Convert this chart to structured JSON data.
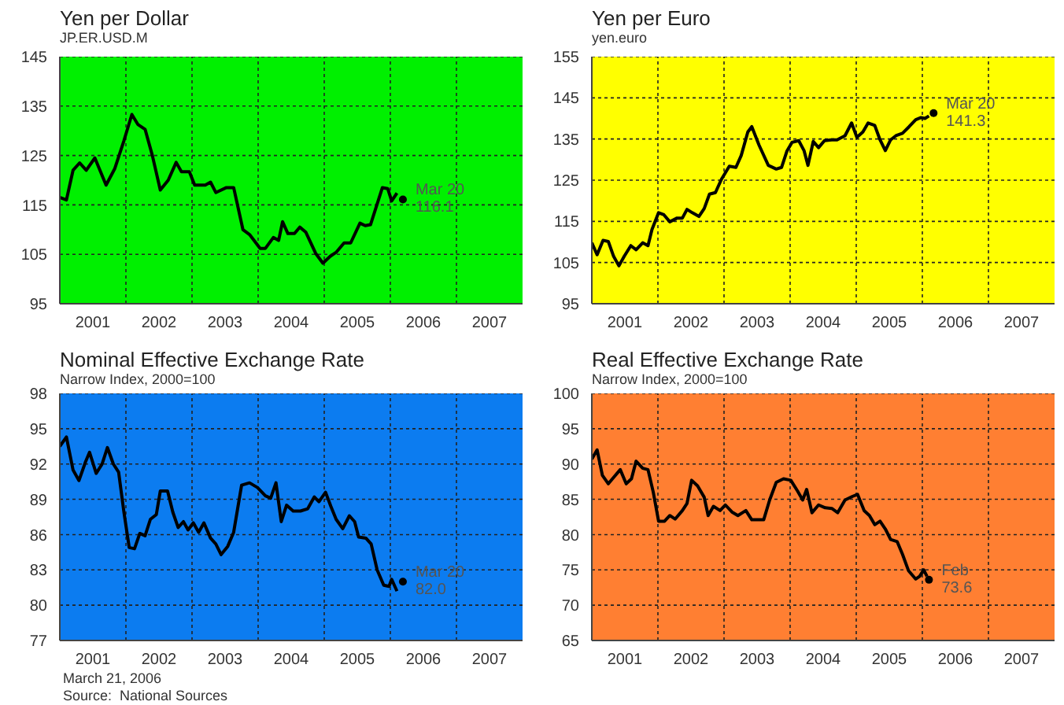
{
  "chart_data": [
    {
      "type": "line",
      "title": "Yen per Dollar",
      "subtitle": "JP.ER.USD.M",
      "xlim": [
        2001,
        2008
      ],
      "xticks": [
        {
          "value": 2001.5,
          "label": "2001"
        },
        {
          "value": 2002,
          "label": null
        },
        {
          "value": 2002.5,
          "label": "2002"
        },
        {
          "value": 2003,
          "label": null
        },
        {
          "value": 2003.5,
          "label": "2003"
        },
        {
          "value": 2004,
          "label": null
        },
        {
          "value": 2004.5,
          "label": "2004"
        },
        {
          "value": 2005,
          "label": null
        },
        {
          "value": 2005.5,
          "label": "2005"
        },
        {
          "value": 2006,
          "label": null
        },
        {
          "value": 2006.5,
          "label": "2006"
        },
        {
          "value": 2007,
          "label": null
        },
        {
          "value": 2007.5,
          "label": "2007"
        }
      ],
      "ylim": [
        95,
        145
      ],
      "yticks": [
        95,
        105,
        115,
        125,
        135,
        145
      ],
      "grid": true,
      "legend": false,
      "marker": "none",
      "line_style": "solid",
      "series": [
        {
          "type": "line",
          "color": "#000000",
          "x": [
            2001.0,
            2001.1,
            2001.2,
            2001.3,
            2001.4,
            2001.53,
            2001.7,
            2001.83,
            2001.97,
            2002.09,
            2002.18,
            2002.29,
            2002.4,
            2002.52,
            2002.64,
            2002.76,
            2002.84,
            2002.96,
            2003.04,
            2003.2,
            2003.28,
            2003.36,
            2003.52,
            2003.63,
            2003.77,
            2003.87,
            2004.03,
            2004.11,
            2004.23,
            2004.31,
            2004.37,
            2004.45,
            2004.55,
            2004.63,
            2004.72,
            2004.87,
            2004.98,
            2005.09,
            2005.18,
            2005.3,
            2005.4,
            2005.54,
            2005.62,
            2005.7,
            2005.88,
            2005.96,
            2006.02,
            2006.1
          ],
          "values": [
            116.5,
            116,
            122,
            123.5,
            122,
            124.5,
            119,
            122.3,
            128,
            133.3,
            131.3,
            130.3,
            125,
            118,
            120,
            123.6,
            121.7,
            121.7,
            119,
            119,
            119.6,
            117.5,
            118.5,
            118.5,
            110,
            109,
            106.2,
            106.2,
            108.4,
            107.8,
            111.6,
            109.2,
            109.2,
            110.5,
            109.5,
            105.2,
            103.2,
            104.6,
            105.4,
            107.3,
            107.3,
            111.3,
            110.8,
            111,
            118.5,
            118.3,
            115.8,
            117.4
          ]
        },
        {
          "type": "scatter",
          "marker": "circle",
          "color": "#000000",
          "x": [
            2006.19
          ],
          "values": [
            116.1
          ]
        }
      ],
      "annotations": [
        {
          "text": "Mar 20\n116.1",
          "x": 2006.19,
          "y": 116.1
        }
      ]
    },
    {
      "type": "line",
      "title": "Yen per Euro",
      "subtitle": "yen.euro",
      "xlim": [
        2001,
        2008
      ],
      "xticks": [
        {
          "value": 2001.5,
          "label": "2001"
        },
        {
          "value": 2002,
          "label": null
        },
        {
          "value": 2002.5,
          "label": "2002"
        },
        {
          "value": 2003,
          "label": null
        },
        {
          "value": 2003.5,
          "label": "2003"
        },
        {
          "value": 2004,
          "label": null
        },
        {
          "value": 2004.5,
          "label": "2004"
        },
        {
          "value": 2005,
          "label": null
        },
        {
          "value": 2005.5,
          "label": "2005"
        },
        {
          "value": 2006,
          "label": null
        },
        {
          "value": 2006.5,
          "label": "2006"
        },
        {
          "value": 2007,
          "label": null
        },
        {
          "value": 2007.5,
          "label": "2007"
        }
      ],
      "ylim": [
        95,
        155
      ],
      "yticks": [
        95,
        105,
        115,
        125,
        135,
        145,
        155
      ],
      "grid": true,
      "legend": false,
      "marker": "none",
      "line_style": "solid",
      "series": [
        {
          "type": "line",
          "color": "#000000",
          "x": [
            2001.0,
            2001.08,
            2001.17,
            2001.25,
            2001.33,
            2001.41,
            2001.49,
            2001.59,
            2001.67,
            2001.77,
            2001.85,
            2001.91,
            2002.01,
            2002.09,
            2002.18,
            2002.29,
            2002.37,
            2002.44,
            2002.52,
            2002.62,
            2002.7,
            2002.78,
            2002.87,
            2002.96,
            2003.08,
            2003.18,
            2003.26,
            2003.36,
            2003.42,
            2003.53,
            2003.67,
            2003.79,
            2003.87,
            2003.95,
            2004.03,
            2004.13,
            2004.21,
            2004.27,
            2004.35,
            2004.43,
            2004.52,
            2004.63,
            2004.71,
            2004.83,
            2004.93,
            2005.01,
            2005.1,
            2005.18,
            2005.28,
            2005.36,
            2005.44,
            2005.52,
            2005.6,
            2005.7,
            2005.8,
            2005.9,
            2005.98,
            2006.04,
            2006.1
          ],
          "values": [
            109.8,
            106.9,
            110.4,
            110.1,
            106.5,
            104.2,
            106.5,
            109.1,
            108.1,
            109.8,
            109.1,
            113,
            117.1,
            116.6,
            114.9,
            115.8,
            115.8,
            117.9,
            117.1,
            116.2,
            118.1,
            121.6,
            122,
            125.2,
            128.4,
            128.1,
            131,
            136.7,
            138,
            133.5,
            128.6,
            127.7,
            128.1,
            132,
            134.2,
            134.6,
            132.2,
            128.6,
            134.4,
            132.9,
            134.6,
            134.8,
            134.8,
            135.8,
            138.9,
            135.4,
            136.7,
            138.9,
            138.3,
            134.8,
            132.2,
            134.8,
            135.8,
            136.4,
            138,
            139.7,
            140.2,
            140,
            140.6
          ]
        },
        {
          "type": "scatter",
          "marker": "circle",
          "color": "#000000",
          "x": [
            2006.17
          ],
          "values": [
            141.3
          ]
        }
      ],
      "annotations": [
        {
          "text": "Mar 20\n141.3",
          "x": 2006.17,
          "y": 141.3
        }
      ]
    },
    {
      "type": "line",
      "title": "Nominal Effective Exchange Rate",
      "subtitle": "Narrow Index, 2000=100",
      "xlim": [
        2001,
        2008
      ],
      "xticks": [
        {
          "value": 2001.5,
          "label": "2001"
        },
        {
          "value": 2002,
          "label": null
        },
        {
          "value": 2002.5,
          "label": "2002"
        },
        {
          "value": 2003,
          "label": null
        },
        {
          "value": 2003.5,
          "label": "2003"
        },
        {
          "value": 2004,
          "label": null
        },
        {
          "value": 2004.5,
          "label": "2004"
        },
        {
          "value": 2005,
          "label": null
        },
        {
          "value": 2005.5,
          "label": "2005"
        },
        {
          "value": 2006,
          "label": null
        },
        {
          "value": 2006.5,
          "label": "2006"
        },
        {
          "value": 2007,
          "label": null
        },
        {
          "value": 2007.5,
          "label": "2007"
        }
      ],
      "ylim": [
        77,
        98
      ],
      "yticks": [
        77,
        80,
        83,
        86,
        89,
        92,
        95,
        98
      ],
      "grid": true,
      "legend": false,
      "marker": "none",
      "line_style": "solid",
      "series": [
        {
          "type": "line",
          "color": "#000000",
          "x": [
            2001.0,
            2001.1,
            2001.2,
            2001.29,
            2001.39,
            2001.45,
            2001.55,
            2001.64,
            2001.72,
            2001.81,
            2001.89,
            2001.97,
            2002.05,
            2002.13,
            2002.21,
            2002.29,
            2002.37,
            2002.46,
            2002.52,
            2002.63,
            2002.71,
            2002.79,
            2002.87,
            2002.94,
            2003.02,
            2003.1,
            2003.18,
            2003.28,
            2003.36,
            2003.44,
            2003.54,
            2003.63,
            2003.75,
            2003.87,
            2003.99,
            2004.11,
            2004.19,
            2004.27,
            2004.35,
            2004.43,
            2004.53,
            2004.64,
            2004.75,
            2004.85,
            2004.92,
            2005.02,
            2005.1,
            2005.18,
            2005.28,
            2005.38,
            2005.46,
            2005.52,
            2005.63,
            2005.71,
            2005.8,
            2005.9,
            2005.98,
            2006.02,
            2006.1
          ],
          "values": [
            93.5,
            94.3,
            91.5,
            90.6,
            92.2,
            93,
            91.2,
            92,
            93.4,
            92,
            91.3,
            87.9,
            84.9,
            84.8,
            86.1,
            85.9,
            87.3,
            87.7,
            89.7,
            89.7,
            87.9,
            86.6,
            87.1,
            86.4,
            87,
            86.2,
            87,
            85.7,
            85.2,
            84.3,
            85,
            86.2,
            90.2,
            90.4,
            90,
            89.3,
            89.1,
            90.4,
            87.1,
            88.5,
            88,
            88,
            88.2,
            89.2,
            88.8,
            89.6,
            88.4,
            87.3,
            86.5,
            87.6,
            87.1,
            85.8,
            85.7,
            85.2,
            83,
            81.7,
            81.6,
            82.2,
            81.2
          ]
        },
        {
          "type": "scatter",
          "marker": "circle",
          "color": "#000000",
          "x": [
            2006.19
          ],
          "values": [
            82.0
          ]
        }
      ],
      "annotations": [
        {
          "text": "Mar 20\n82.0",
          "x": 2006.19,
          "y": 82.0
        },
        "March 21, 2006",
        "Source:  National Sources"
      ]
    },
    {
      "type": "line",
      "title": "Real Effective Exchange Rate",
      "subtitle": "Narrow Index, 2000=100",
      "xlim": [
        2001,
        2008
      ],
      "xticks": [
        {
          "value": 2001.5,
          "label": "2001"
        },
        {
          "value": 2002,
          "label": null
        },
        {
          "value": 2002.5,
          "label": "2002"
        },
        {
          "value": 2003,
          "label": null
        },
        {
          "value": 2003.5,
          "label": "2003"
        },
        {
          "value": 2004,
          "label": null
        },
        {
          "value": 2004.5,
          "label": "2004"
        },
        {
          "value": 2005,
          "label": null
        },
        {
          "value": 2005.5,
          "label": "2005"
        },
        {
          "value": 2006,
          "label": null
        },
        {
          "value": 2006.5,
          "label": "2006"
        },
        {
          "value": 2007,
          "label": null
        },
        {
          "value": 2007.5,
          "label": "2007"
        }
      ],
      "ylim": [
        65,
        100
      ],
      "yticks": [
        65,
        70,
        75,
        80,
        85,
        90,
        95,
        100
      ],
      "grid": true,
      "legend": false,
      "marker": "none",
      "line_style": "solid",
      "series": [
        {
          "type": "line",
          "color": "#000000",
          "x": [
            2001.0,
            2001.08,
            2001.16,
            2001.25,
            2001.33,
            2001.43,
            2001.52,
            2001.6,
            2001.67,
            2001.77,
            2001.85,
            2001.93,
            2002.01,
            2002.1,
            2002.18,
            2002.26,
            2002.37,
            2002.44,
            2002.51,
            2002.6,
            2002.7,
            2002.76,
            2002.84,
            2002.94,
            2003.02,
            2003.12,
            2003.21,
            2003.33,
            2003.42,
            2003.6,
            2003.69,
            2003.79,
            2003.9,
            2004.01,
            2004.11,
            2004.19,
            2004.25,
            2004.33,
            2004.43,
            2004.53,
            2004.63,
            2004.72,
            2004.83,
            2004.94,
            2005.02,
            2005.12,
            2005.2,
            2005.28,
            2005.36,
            2005.44,
            2005.52,
            2005.62,
            2005.7,
            2005.79,
            2005.9,
            2005.96,
            2006.02,
            2006.07
          ],
          "values": [
            90.7,
            92,
            88.4,
            87.2,
            88.1,
            89.2,
            87.2,
            87.9,
            90.4,
            89.4,
            89.2,
            86,
            81.9,
            81.9,
            82.7,
            82.2,
            83.4,
            84.4,
            87.7,
            86.9,
            85.3,
            82.7,
            84,
            83.4,
            84.2,
            83.2,
            82.7,
            83.4,
            82.1,
            82.1,
            84.9,
            87.4,
            87.9,
            87.7,
            86.2,
            84.9,
            86.4,
            83.1,
            84.2,
            83.8,
            83.7,
            83.1,
            84.9,
            85.4,
            85.7,
            83.4,
            82.7,
            81.4,
            81.9,
            80.8,
            79.3,
            79,
            77.2,
            74.9,
            73.7,
            74.1,
            75,
            74.1
          ]
        },
        {
          "type": "scatter",
          "marker": "circle",
          "color": "#000000",
          "x": [
            2006.1
          ],
          "values": [
            73.6
          ]
        }
      ],
      "annotations": [
        {
          "text": "Feb\n73.6",
          "x": 2006.1,
          "y": 73.6
        }
      ]
    }
  ]
}
